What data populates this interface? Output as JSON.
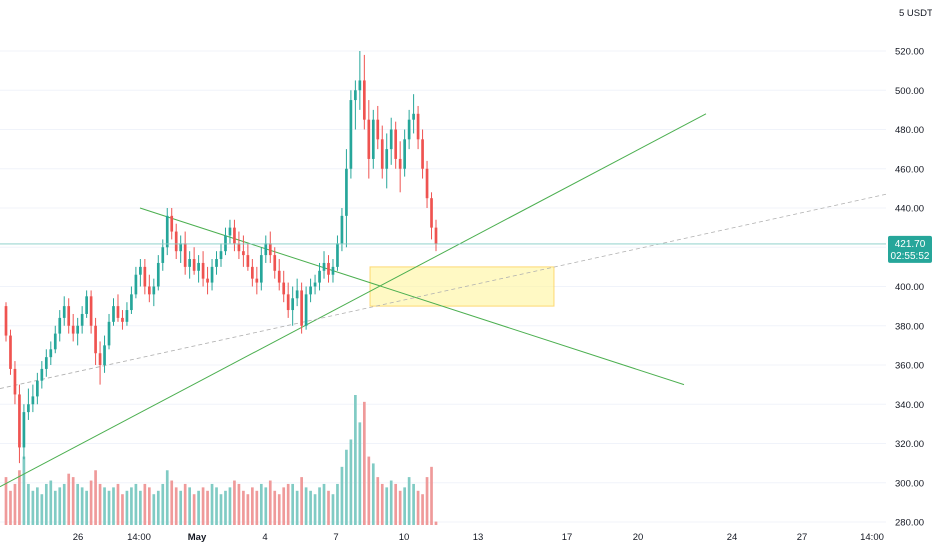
{
  "chart_data": {
    "type": "candlestick",
    "quote_currency": "5 USDT",
    "ylim": [
      280,
      530
    ],
    "y_ticks": [
      280,
      300,
      320,
      340,
      360,
      380,
      400,
      420,
      440,
      460,
      480,
      500,
      520
    ],
    "y_tick_labels": [
      "280.00",
      "300.00",
      "320.00",
      "340.00",
      "360.00",
      "380.00",
      "400.00",
      "420.00",
      "440.00",
      "460.00",
      "480.00",
      "500.00",
      "520.00"
    ],
    "x_tick_labels": [
      "26",
      "14:00",
      "May",
      "4",
      "7",
      "10",
      "13",
      "17",
      "20",
      "24",
      "27",
      "14:00"
    ],
    "last_price": 421.7,
    "last_price_label": "421.70",
    "countdown_label": "02:55:52",
    "colors": {
      "up": "#26a69a",
      "down": "#ef5350",
      "line": "#4caf50",
      "zone": "#fff59d",
      "zone_border": "#fbc02d"
    },
    "candles": [
      [
        390,
        392,
        372,
        375
      ],
      [
        375,
        378,
        355,
        358
      ],
      [
        358,
        362,
        340,
        345
      ],
      [
        345,
        350,
        310,
        318
      ],
      [
        318,
        340,
        312,
        336
      ],
      [
        336,
        348,
        332,
        340
      ],
      [
        340,
        350,
        336,
        344
      ],
      [
        344,
        356,
        340,
        352
      ],
      [
        352,
        362,
        348,
        358
      ],
      [
        358,
        368,
        354,
        364
      ],
      [
        364,
        372,
        360,
        368
      ],
      [
        368,
        380,
        366,
        376
      ],
      [
        376,
        388,
        372,
        384
      ],
      [
        384,
        395,
        380,
        390
      ],
      [
        390,
        394,
        376,
        380
      ],
      [
        380,
        386,
        372,
        376
      ],
      [
        376,
        384,
        370,
        380
      ],
      [
        380,
        390,
        376,
        386
      ],
      [
        386,
        398,
        384,
        395
      ],
      [
        395,
        398,
        376,
        380
      ],
      [
        380,
        384,
        360,
        366
      ],
      [
        366,
        372,
        350,
        360
      ],
      [
        360,
        375,
        356,
        370
      ],
      [
        370,
        386,
        368,
        382
      ],
      [
        382,
        394,
        380,
        390
      ],
      [
        390,
        396,
        382,
        384
      ],
      [
        384,
        388,
        378,
        382
      ],
      [
        382,
        392,
        380,
        388
      ],
      [
        388,
        400,
        386,
        396
      ],
      [
        396,
        410,
        394,
        406
      ],
      [
        406,
        414,
        400,
        410
      ],
      [
        410,
        414,
        396,
        400
      ],
      [
        400,
        406,
        392,
        396
      ],
      [
        396,
        404,
        390,
        400
      ],
      [
        400,
        416,
        398,
        412
      ],
      [
        412,
        424,
        408,
        420
      ],
      [
        420,
        440,
        416,
        436
      ],
      [
        436,
        440,
        424,
        428
      ],
      [
        428,
        432,
        414,
        418
      ],
      [
        418,
        426,
        412,
        422
      ],
      [
        422,
        428,
        406,
        410
      ],
      [
        410,
        418,
        404,
        414
      ],
      [
        414,
        420,
        406,
        408
      ],
      [
        408,
        416,
        402,
        412
      ],
      [
        412,
        418,
        400,
        404
      ],
      [
        404,
        410,
        396,
        402
      ],
      [
        402,
        414,
        398,
        410
      ],
      [
        410,
        418,
        406,
        414
      ],
      [
        414,
        422,
        410,
        418
      ],
      [
        418,
        430,
        416,
        426
      ],
      [
        426,
        434,
        422,
        430
      ],
      [
        430,
        434,
        418,
        422
      ],
      [
        422,
        428,
        414,
        418
      ],
      [
        418,
        426,
        410,
        416
      ],
      [
        416,
        422,
        408,
        410
      ],
      [
        410,
        414,
        400,
        404
      ],
      [
        404,
        410,
        396,
        402
      ],
      [
        402,
        420,
        398,
        416
      ],
      [
        416,
        426,
        412,
        422
      ],
      [
        422,
        428,
        412,
        416
      ],
      [
        416,
        420,
        404,
        408
      ],
      [
        408,
        414,
        398,
        402
      ],
      [
        402,
        408,
        392,
        396
      ],
      [
        396,
        402,
        384,
        388
      ],
      [
        388,
        400,
        380,
        394
      ],
      [
        394,
        404,
        390,
        398
      ],
      [
        398,
        402,
        376,
        380
      ],
      [
        380,
        400,
        378,
        396
      ],
      [
        396,
        404,
        392,
        400
      ],
      [
        400,
        406,
        396,
        402
      ],
      [
        402,
        412,
        398,
        408
      ],
      [
        408,
        418,
        404,
        412
      ],
      [
        412,
        416,
        402,
        406
      ],
      [
        406,
        414,
        402,
        410
      ],
      [
        410,
        426,
        408,
        422
      ],
      [
        422,
        440,
        418,
        436
      ],
      [
        436,
        470,
        420,
        460
      ],
      [
        460,
        500,
        455,
        495
      ],
      [
        495,
        505,
        480,
        500
      ],
      [
        500,
        520,
        490,
        505
      ],
      [
        505,
        518,
        480,
        485
      ],
      [
        485,
        495,
        455,
        465
      ],
      [
        465,
        490,
        460,
        485
      ],
      [
        485,
        492,
        470,
        475
      ],
      [
        475,
        482,
        455,
        460
      ],
      [
        460,
        478,
        450,
        470
      ],
      [
        470,
        486,
        462,
        480
      ],
      [
        480,
        484,
        460,
        465
      ],
      [
        465,
        474,
        448,
        460
      ],
      [
        460,
        480,
        456,
        475
      ],
      [
        475,
        490,
        470,
        485
      ],
      [
        485,
        498,
        478,
        488
      ],
      [
        488,
        492,
        470,
        475
      ],
      [
        475,
        480,
        455,
        460
      ],
      [
        460,
        464,
        440,
        445
      ],
      [
        445,
        448,
        424,
        430
      ],
      [
        430,
        434,
        418,
        421.7
      ]
    ],
    "volumes": [
      14,
      10,
      12,
      16,
      20,
      12,
      10,
      11,
      9,
      12,
      13,
      10,
      11,
      12,
      15,
      14,
      12,
      11,
      10,
      13,
      16,
      12,
      11,
      10,
      11,
      12,
      9,
      10,
      11,
      12,
      10,
      12,
      11,
      9,
      10,
      12,
      16,
      13,
      11,
      10,
      12,
      11,
      9,
      10,
      11,
      10,
      12,
      11,
      9,
      10,
      11,
      13,
      12,
      10,
      9,
      11,
      10,
      12,
      11,
      13,
      10,
      9,
      11,
      12,
      12,
      10,
      14,
      11,
      10,
      9,
      11,
      12,
      10,
      9,
      12,
      17,
      22,
      25,
      38,
      30,
      36,
      20,
      18,
      14,
      12,
      11,
      13,
      12,
      10,
      11,
      14,
      12,
      10,
      9,
      14,
      17,
      1
    ],
    "trendlines": [
      {
        "name": "ascending-support",
        "from": [
          "2021-04-22",
          298
        ],
        "to": [
          "2021-05-23",
          488
        ]
      },
      {
        "name": "descending-resistance",
        "from": [
          "2021-04-28",
          440
        ],
        "to": [
          "2021-05-22",
          350
        ]
      },
      {
        "name": "dashed-trend",
        "from": [
          "2021-04-22",
          348
        ],
        "to": [
          "2021-05-30",
          447
        ]
      }
    ],
    "zone": {
      "price_top": 410,
      "price_bottom": 390
    }
  }
}
